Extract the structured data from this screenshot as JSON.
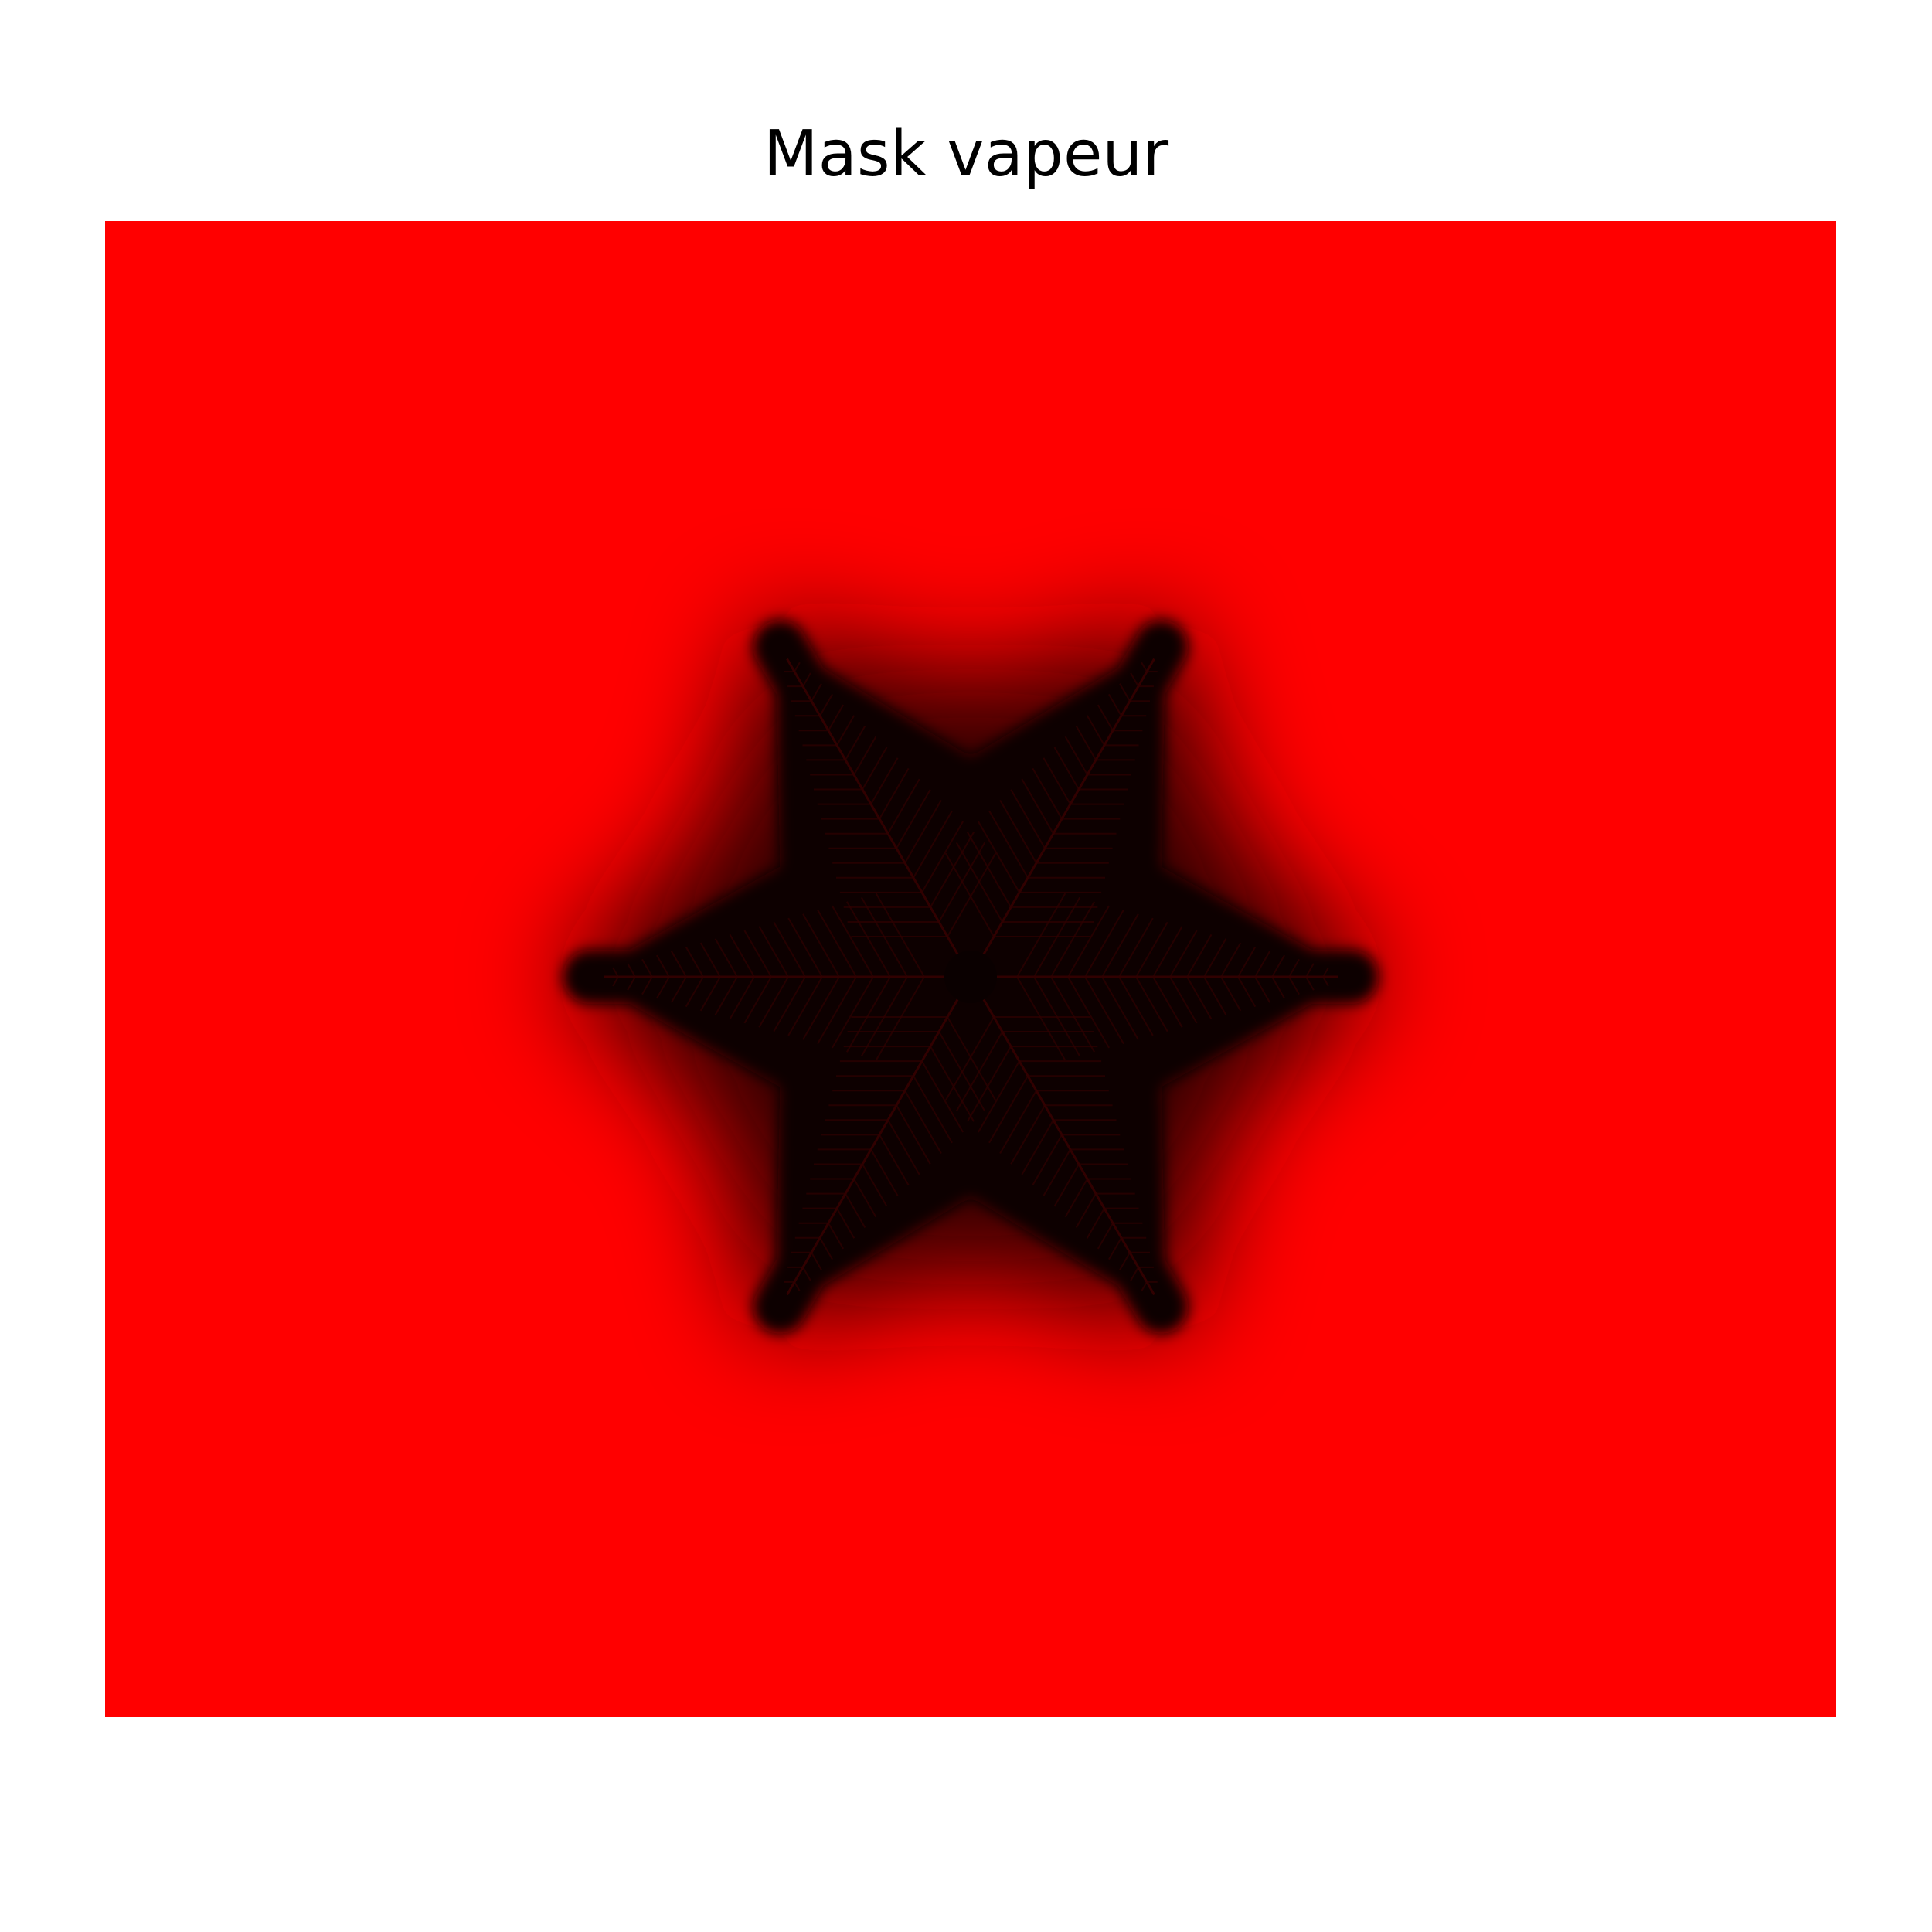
{
  "figure": {
    "title": "Mask vapeur"
  },
  "colors": {
    "background": "#ffffff",
    "vapour_field": "#ff0000",
    "crystal": "#0a0000",
    "title_text": "#000000"
  },
  "image": {
    "subject": "snowflake-crystal",
    "arm_count": 6,
    "axes_visible": false
  }
}
